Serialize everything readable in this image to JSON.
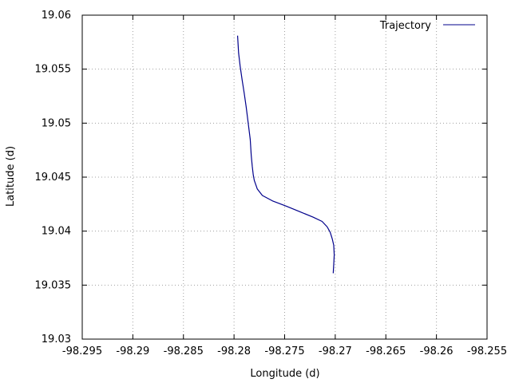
{
  "chart_data": {
    "type": "line",
    "xlabel": "Longitude (d)",
    "ylabel": "Latitude (d)",
    "xlim": [
      -98.295,
      -98.255
    ],
    "ylim": [
      19.03,
      19.06
    ],
    "xticks": [
      "-98.295",
      "-98.29",
      "-98.285",
      "-98.28",
      "-98.275",
      "-98.27",
      "-98.265",
      "-98.26",
      "-98.255"
    ],
    "yticks": [
      "19.03",
      "19.035",
      "19.04",
      "19.045",
      "19.05",
      "19.055",
      "19.06"
    ],
    "grid": true,
    "legend_position": "top-right",
    "series": [
      {
        "name": "Trajectory",
        "color": "#00008b",
        "x": [
          -98.27965,
          -98.27955,
          -98.2794,
          -98.2792,
          -98.279,
          -98.2788,
          -98.2786,
          -98.2784,
          -98.2783,
          -98.2782,
          -98.2781,
          -98.278,
          -98.2777,
          -98.2772,
          -98.2762,
          -98.2748,
          -98.2735,
          -98.2722,
          -98.2713,
          -98.2708,
          -98.2705,
          -98.2703,
          -98.27015,
          -98.2701,
          -98.27015,
          -98.2702
        ],
        "y": [
          19.0581,
          19.0565,
          19.0553,
          19.054,
          19.0528,
          19.0515,
          19.05,
          19.0485,
          19.047,
          19.046,
          19.0452,
          19.0447,
          19.0439,
          19.0433,
          19.0428,
          19.0423,
          19.0418,
          19.0413,
          19.0409,
          19.0404,
          19.0399,
          19.0393,
          19.0387,
          19.0378,
          19.0369,
          19.0361
        ]
      }
    ]
  }
}
